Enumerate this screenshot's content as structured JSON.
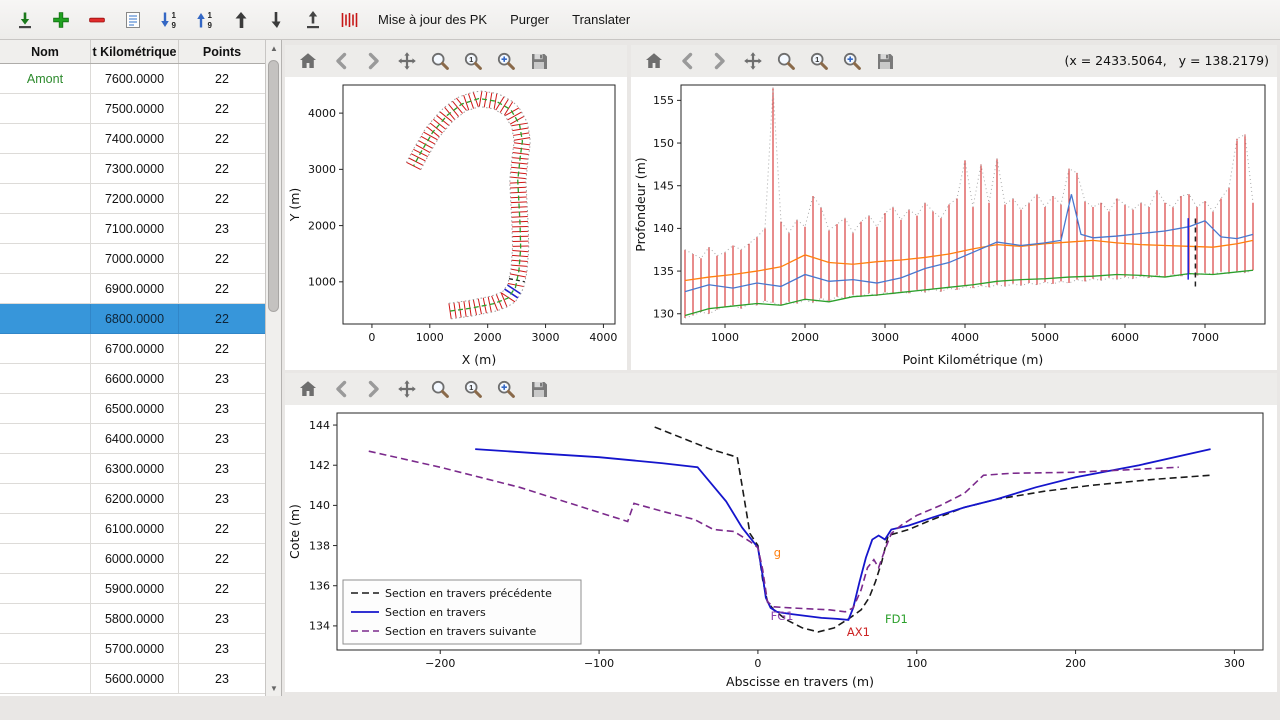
{
  "toolbar": {
    "icon_buttons": [
      {
        "name": "import"
      },
      {
        "name": "add"
      },
      {
        "name": "remove"
      },
      {
        "name": "edit"
      },
      {
        "name": "sort-desc"
      },
      {
        "name": "sort-asc"
      },
      {
        "name": "move-up"
      },
      {
        "name": "move-down"
      },
      {
        "name": "export"
      },
      {
        "name": "pk-stripes"
      }
    ],
    "text_buttons": [
      "Mise à jour des PK",
      "Purger",
      "Translater"
    ]
  },
  "plot_toolbar": {
    "icons": [
      "home",
      "back",
      "forward",
      "pan",
      "zoom",
      "zoom-one",
      "zoom-plus",
      "save"
    ]
  },
  "readout": "(x = 2433.5064,   y = 138.2179)",
  "colors": {
    "selection": "#3796da",
    "amont_green": "#2d8a2d",
    "section_red": "#cf1717",
    "toolbar_bg": "#edecea"
  },
  "table": {
    "headers": [
      "Nom",
      "t Kilométrique",
      "Points"
    ],
    "selected_index": 8,
    "rows": [
      {
        "nom": "Amont",
        "pk": "7600.0000",
        "points": "22"
      },
      {
        "nom": "",
        "pk": "7500.0000",
        "points": "22"
      },
      {
        "nom": "",
        "pk": "7400.0000",
        "points": "22"
      },
      {
        "nom": "",
        "pk": "7300.0000",
        "points": "22"
      },
      {
        "nom": "",
        "pk": "7200.0000",
        "points": "22"
      },
      {
        "nom": "",
        "pk": "7100.0000",
        "points": "23"
      },
      {
        "nom": "",
        "pk": "7000.0000",
        "points": "22"
      },
      {
        "nom": "",
        "pk": "6900.0000",
        "points": "22"
      },
      {
        "nom": "",
        "pk": "6800.0000",
        "points": "22"
      },
      {
        "nom": "",
        "pk": "6700.0000",
        "points": "22"
      },
      {
        "nom": "",
        "pk": "6600.0000",
        "points": "23"
      },
      {
        "nom": "",
        "pk": "6500.0000",
        "points": "23"
      },
      {
        "nom": "",
        "pk": "6400.0000",
        "points": "23"
      },
      {
        "nom": "",
        "pk": "6300.0000",
        "points": "23"
      },
      {
        "nom": "",
        "pk": "6200.0000",
        "points": "23"
      },
      {
        "nom": "",
        "pk": "6100.0000",
        "points": "22"
      },
      {
        "nom": "",
        "pk": "6000.0000",
        "points": "22"
      },
      {
        "nom": "",
        "pk": "5900.0000",
        "points": "22"
      },
      {
        "nom": "",
        "pk": "5800.0000",
        "points": "23"
      },
      {
        "nom": "",
        "pk": "5700.0000",
        "points": "23"
      },
      {
        "nom": "",
        "pk": "5600.0000",
        "points": "23"
      }
    ]
  },
  "chart_data": [
    {
      "id": "plan",
      "type": "line",
      "title": "",
      "xlabel": "X (m)",
      "ylabel": "Y (m)",
      "xlim": [
        -500,
        4200
      ],
      "ylim": [
        250,
        4500
      ],
      "xticks": [
        0,
        1000,
        2000,
        3000,
        4000
      ],
      "yticks": [
        1000,
        2000,
        3000,
        4000
      ],
      "centerline": [
        [
          1350,
          480
        ],
        [
          1700,
          530
        ],
        [
          2100,
          610
        ],
        [
          2350,
          710
        ],
        [
          2480,
          900
        ],
        [
          2540,
          1200
        ],
        [
          2570,
          1600
        ],
        [
          2560,
          2000
        ],
        [
          2540,
          2400
        ],
        [
          2520,
          2800
        ],
        [
          2560,
          3200
        ],
        [
          2600,
          3500
        ],
        [
          2550,
          3800
        ],
        [
          2400,
          4060
        ],
        [
          2150,
          4210
        ],
        [
          1850,
          4260
        ],
        [
          1550,
          4160
        ],
        [
          1300,
          3960
        ],
        [
          1050,
          3660
        ],
        [
          850,
          3310
        ],
        [
          720,
          3060
        ]
      ],
      "section_half_width": 140,
      "n_sections": 78,
      "centerline_color": "#2ca02c",
      "section_color": "#cf1717",
      "highlight": {
        "frac_start": 0.155,
        "frac_end": 0.182,
        "color": "#2020cc"
      },
      "marker_frac": 0.207
    },
    {
      "id": "profile",
      "type": "line",
      "xlabel": "Point Kilométrique (m)",
      "ylabel": "Profondeur (m)",
      "xlim": [
        450,
        7750
      ],
      "ylim": [
        128.8,
        156.8
      ],
      "xticks": [
        1000,
        2000,
        3000,
        4000,
        5000,
        6000,
        7000
      ],
      "yticks": [
        130,
        135,
        140,
        145,
        150,
        155
      ],
      "bars": {
        "x0": 500,
        "dx": 100,
        "color": "#d01a1a",
        "ymin": [
          129.5,
          129.8,
          130.2,
          130.0,
          130.5,
          130.8,
          131.0,
          130.6,
          131.2,
          131.0,
          131.5,
          131.3,
          131.0,
          131.4,
          131.2,
          131.6,
          131.3,
          131.8,
          131.5,
          132.0,
          131.8,
          132.2,
          132.0,
          132.4,
          132.1,
          132.5,
          132.3,
          132.6,
          132.4,
          132.8,
          132.5,
          132.9,
          132.6,
          133.0,
          132.8,
          133.2,
          133.0,
          133.3,
          133.1,
          133.4,
          133.2,
          133.5,
          133.3,
          133.6,
          133.4,
          133.7,
          133.5,
          133.8,
          133.6,
          134.0,
          133.8,
          134.1,
          133.9,
          134.2,
          134.0,
          134.3,
          134.1,
          134.4,
          134.2,
          134.5,
          134.3,
          134.6,
          134.4,
          134.7,
          134.5,
          134.8,
          134.6,
          134.9,
          134.7,
          135.0,
          134.8,
          135.1
        ],
        "ymax": [
          137.5,
          137.0,
          136.5,
          137.8,
          136.8,
          137.2,
          138.0,
          137.5,
          138.2,
          139.0,
          140.0,
          156.5,
          140.8,
          139.5,
          141.0,
          140.2,
          143.8,
          142.5,
          139.8,
          140.5,
          141.2,
          139.5,
          140.8,
          141.5,
          140.2,
          141.8,
          142.5,
          141.0,
          142.2,
          141.5,
          143.0,
          142.0,
          141.2,
          142.8,
          143.5,
          148.0,
          142.5,
          147.5,
          143.0,
          148.2,
          142.8,
          143.5,
          142.2,
          143.0,
          144.0,
          142.5,
          143.8,
          142.8,
          147.0,
          146.5,
          143.2,
          142.5,
          143.0,
          142.0,
          143.5,
          142.8,
          142.2,
          143.0,
          142.5,
          144.5,
          143.0,
          142.5,
          143.8,
          144.0,
          142.5,
          143.2,
          142.0,
          143.5,
          144.8,
          150.5,
          151.0,
          143.0
        ]
      },
      "series": [
        {
          "name": "fond",
          "color": "#2ca02c",
          "x": [
            500,
            800,
            1100,
            1400,
            1700,
            2000,
            2300,
            2600,
            2900,
            3200,
            3500,
            3800,
            4100,
            4400,
            4700,
            5000,
            5300,
            5600,
            5900,
            6200,
            6500,
            6800,
            7100,
            7400,
            7600
          ],
          "y": [
            129.8,
            130.6,
            130.9,
            131.2,
            131.0,
            131.7,
            131.4,
            132.0,
            132.2,
            132.5,
            132.8,
            133.1,
            133.4,
            133.8,
            134.0,
            134.1,
            134.3,
            134.4,
            134.6,
            134.5,
            134.3,
            134.7,
            134.6,
            134.9,
            135.1
          ]
        },
        {
          "name": "ligne-orange",
          "color": "#ff7f0e",
          "x": [
            500,
            800,
            1100,
            1400,
            1700,
            2000,
            2300,
            2600,
            2900,
            3200,
            3500,
            3800,
            4100,
            4400,
            4700,
            5000,
            5300,
            5600,
            5900,
            6200,
            6500,
            6800,
            7100,
            7400,
            7600
          ],
          "y": [
            133.9,
            134.3,
            134.6,
            135.0,
            135.5,
            136.9,
            136.0,
            135.8,
            136.1,
            136.3,
            136.6,
            137.0,
            137.6,
            138.1,
            137.9,
            138.2,
            138.4,
            138.6,
            138.3,
            138.1,
            138.0,
            137.9,
            137.8,
            138.2,
            138.6
          ]
        },
        {
          "name": "ligne-bleue",
          "color": "#4878cf",
          "x": [
            500,
            800,
            1100,
            1400,
            1700,
            2000,
            2300,
            2600,
            2900,
            3200,
            3500,
            3800,
            4100,
            4400,
            4700,
            5000,
            5200,
            5330,
            5450,
            5600,
            5900,
            6200,
            6500,
            6800,
            7000,
            7200,
            7400,
            7600
          ],
          "y": [
            132.6,
            133.4,
            133.0,
            133.6,
            133.2,
            134.6,
            133.8,
            134.0,
            133.6,
            134.2,
            135.3,
            136.0,
            137.2,
            138.4,
            138.0,
            138.3,
            138.6,
            144.0,
            139.3,
            138.9,
            139.1,
            139.4,
            139.7,
            140.2,
            140.9,
            139.0,
            138.8,
            139.3
          ]
        }
      ],
      "markers": [
        {
          "x": 6790,
          "y0": 134.0,
          "y1": 141.2,
          "color": "#2222dd",
          "dash": ""
        },
        {
          "x": 6880,
          "y0": 133.2,
          "y1": 141.4,
          "color": "#222222",
          "dash": "5,4"
        }
      ]
    },
    {
      "id": "section",
      "type": "line",
      "xlabel": "Abscisse en travers (m)",
      "ylabel": "Cote (m)",
      "xlim": [
        -265,
        318
      ],
      "ylim": [
        132.8,
        144.6
      ],
      "xticks": [
        -200,
        -100,
        0,
        100,
        200,
        300
      ],
      "yticks": [
        134,
        136,
        138,
        140,
        142,
        144
      ],
      "series": [
        {
          "name": "Section en travers précédente",
          "color": "#1a1a1a",
          "dash": "7,4",
          "width": 1.6,
          "points": [
            [
              -65,
              143.9
            ],
            [
              -30,
              142.8
            ],
            [
              -13,
              142.4
            ],
            [
              -10,
              141.0
            ],
            [
              -5,
              138.6
            ],
            [
              0,
              138.0
            ],
            [
              3,
              136.3
            ],
            [
              6,
              135.2
            ],
            [
              10,
              134.8
            ],
            [
              18,
              134.3
            ],
            [
              28,
              133.9
            ],
            [
              38,
              133.7
            ],
            [
              48,
              133.9
            ],
            [
              58,
              134.4
            ],
            [
              65,
              134.8
            ],
            [
              70,
              135.4
            ],
            [
              74,
              136.2
            ],
            [
              78,
              137.2
            ],
            [
              82,
              138.5
            ],
            [
              95,
              138.8
            ],
            [
              110,
              139.3
            ],
            [
              130,
              139.9
            ],
            [
              150,
              140.3
            ],
            [
              180,
              140.7
            ],
            [
              210,
              141.0
            ],
            [
              250,
              141.3
            ],
            [
              285,
              141.5
            ]
          ]
        },
        {
          "name": "Section en travers",
          "color": "#1515cc",
          "dash": "",
          "width": 1.8,
          "points": [
            [
              -178,
              142.8
            ],
            [
              -140,
              142.6
            ],
            [
              -100,
              142.4
            ],
            [
              -60,
              142.1
            ],
            [
              -38,
              141.9
            ],
            [
              -20,
              140.2
            ],
            [
              -10,
              138.9
            ],
            [
              0,
              137.9
            ],
            [
              3,
              136.5
            ],
            [
              5,
              135.4
            ],
            [
              8,
              134.9
            ],
            [
              12,
              134.7
            ],
            [
              20,
              134.6
            ],
            [
              30,
              134.5
            ],
            [
              40,
              134.4
            ],
            [
              50,
              134.35
            ],
            [
              57,
              134.3
            ],
            [
              60,
              134.9
            ],
            [
              64,
              136.2
            ],
            [
              68,
              137.4
            ],
            [
              72,
              138.3
            ],
            [
              76,
              138.5
            ],
            [
              80,
              138.3
            ],
            [
              84,
              138.8
            ],
            [
              95,
              139.0
            ],
            [
              110,
              139.4
            ],
            [
              130,
              139.9
            ],
            [
              150,
              140.3
            ],
            [
              175,
              140.9
            ],
            [
              200,
              141.4
            ],
            [
              240,
              142.0
            ],
            [
              285,
              142.8
            ]
          ]
        },
        {
          "name": "Section en travers suivante",
          "color": "#7b2a8c",
          "dash": "7,4",
          "width": 1.6,
          "points": [
            [
              -245,
              142.7
            ],
            [
              -200,
              141.9
            ],
            [
              -150,
              140.9
            ],
            [
              -110,
              139.9
            ],
            [
              -82,
              139.2
            ],
            [
              -78,
              140.1
            ],
            [
              -60,
              139.7
            ],
            [
              -40,
              139.3
            ],
            [
              -28,
              138.8
            ],
            [
              -15,
              138.7
            ],
            [
              -5,
              138.2
            ],
            [
              0,
              137.9
            ],
            [
              3,
              136.8
            ],
            [
              6,
              135.2
            ],
            [
              10,
              134.95
            ],
            [
              20,
              134.9
            ],
            [
              32,
              134.85
            ],
            [
              45,
              134.8
            ],
            [
              55,
              134.7
            ],
            [
              60,
              134.9
            ],
            [
              65,
              135.8
            ],
            [
              69,
              136.9
            ],
            [
              73,
              137.3
            ],
            [
              76,
              136.9
            ],
            [
              80,
              137.8
            ],
            [
              84,
              138.6
            ],
            [
              90,
              139.0
            ],
            [
              100,
              139.5
            ],
            [
              115,
              140.0
            ],
            [
              130,
              140.6
            ],
            [
              142,
              141.5
            ],
            [
              160,
              141.6
            ],
            [
              200,
              141.65
            ],
            [
              240,
              141.8
            ],
            [
              265,
              141.9
            ]
          ]
        }
      ],
      "annotations": [
        {
          "text": "g",
          "x": 10,
          "y": 137.45,
          "color": "#ff7f0e"
        },
        {
          "text": "FG1",
          "x": 8,
          "y": 134.3,
          "color": "#8e44ad"
        },
        {
          "text": "AX1",
          "x": 56,
          "y": 133.5,
          "color": "#cc2222"
        },
        {
          "text": "FD1",
          "x": 80,
          "y": 134.15,
          "color": "#2ca02c"
        }
      ],
      "legend": {
        "position": "lower-left"
      }
    }
  ]
}
